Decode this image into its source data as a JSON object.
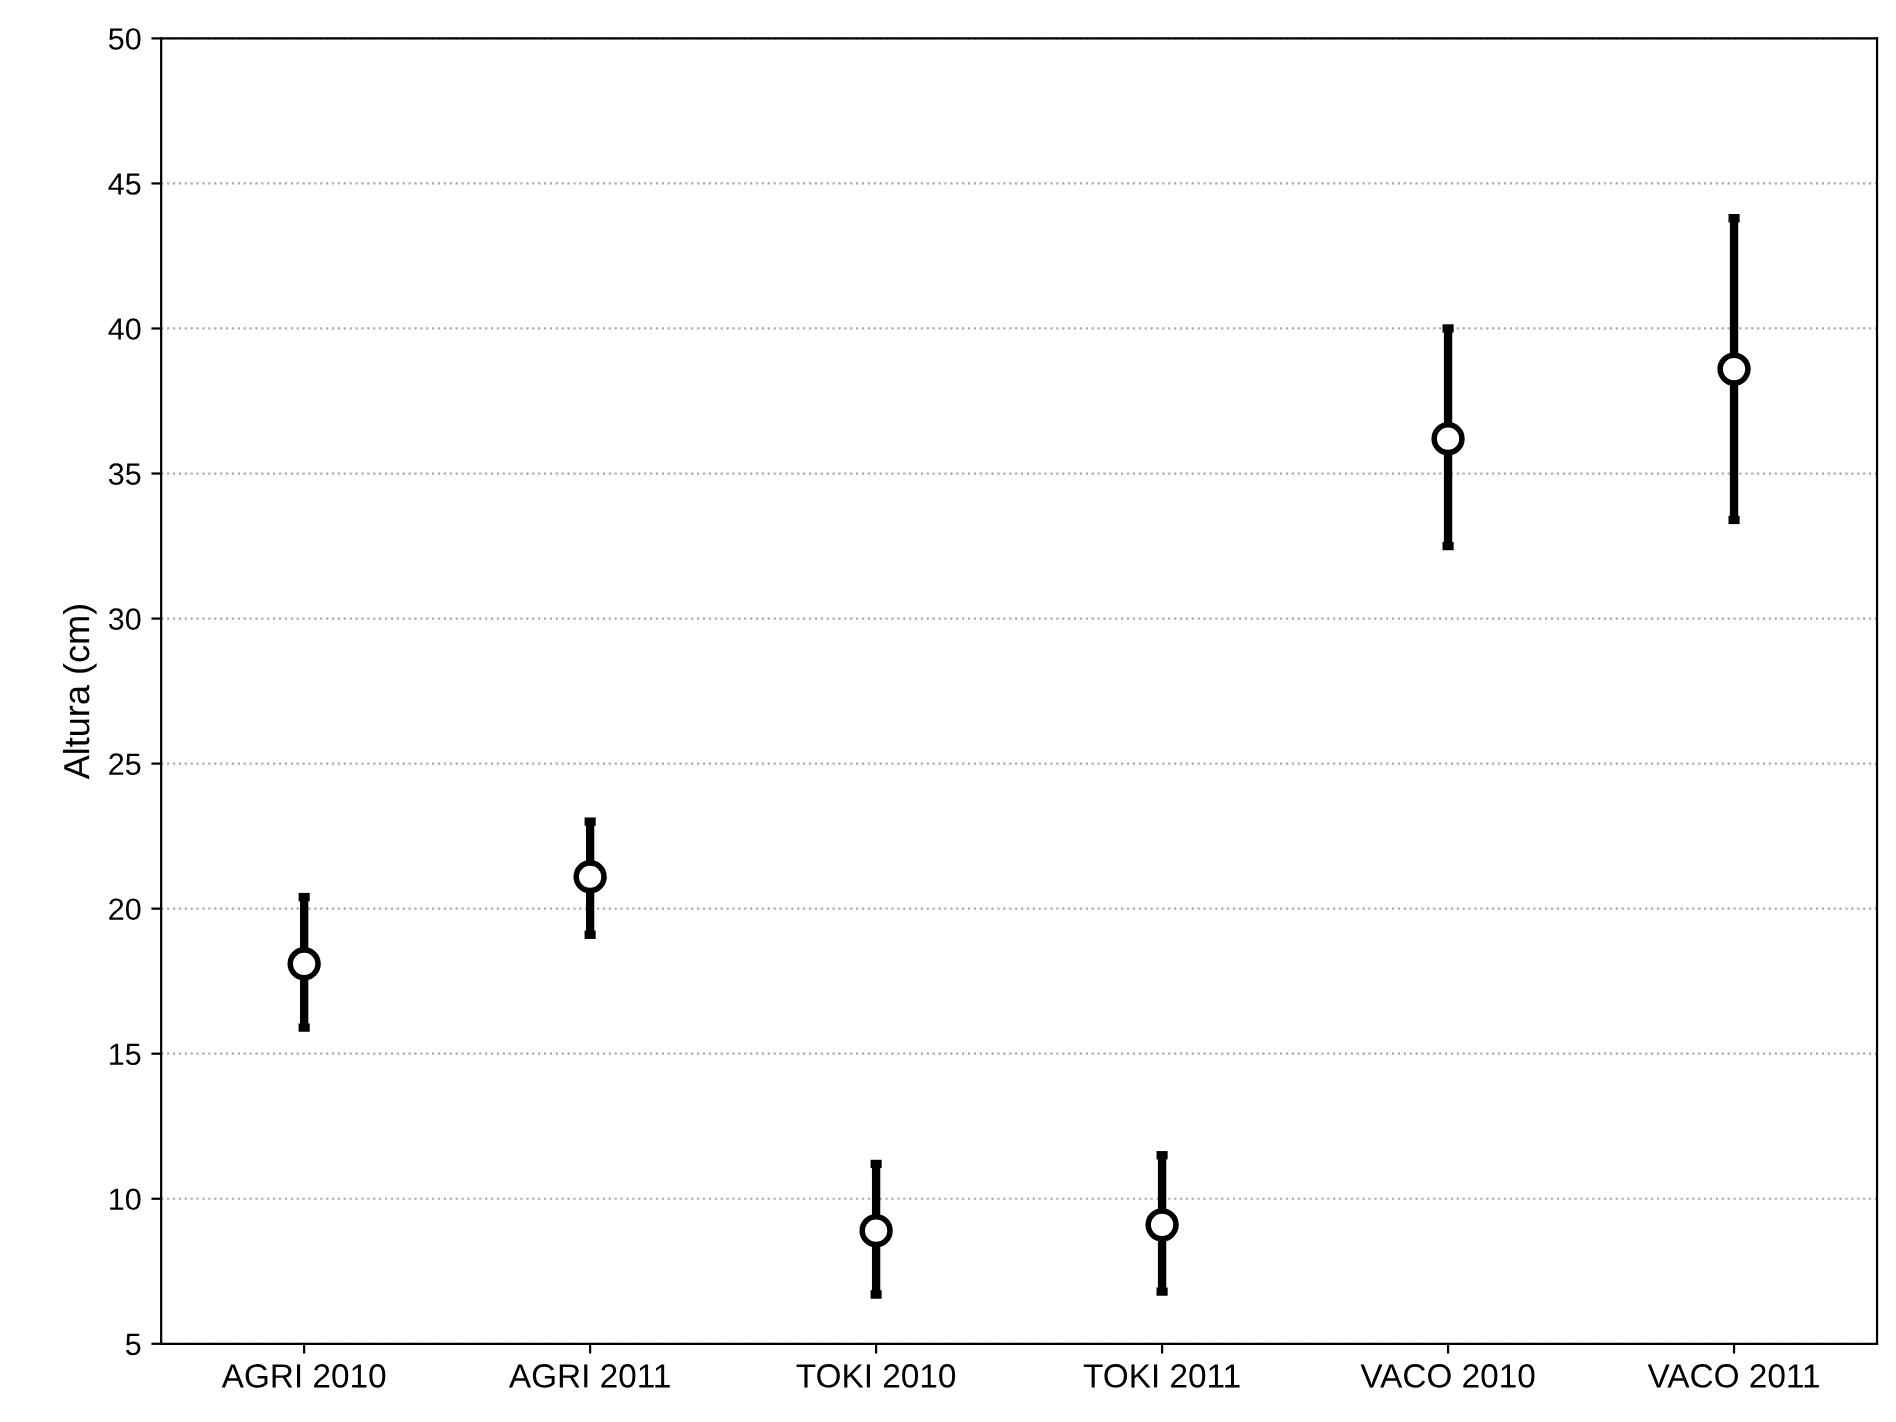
{
  "chart_data": {
    "type": "scatter",
    "ylabel": "Altura (cm)",
    "categories": [
      "AGRI 2010",
      "AGRI 2011",
      "TOKI 2010",
      "TOKI 2011",
      "VACO 2010",
      "VACO 2011"
    ],
    "values": [
      18.1,
      21.1,
      8.9,
      9.1,
      36.2,
      38.6
    ],
    "errors": [
      [
        15.9,
        20.4
      ],
      [
        19.1,
        23.0
      ],
      [
        6.7,
        11.2
      ],
      [
        6.8,
        11.5
      ],
      [
        32.5,
        40.0
      ],
      [
        33.4,
        43.8
      ]
    ],
    "color": "#000000",
    "marker": "circle",
    "ylim": [
      5,
      50
    ],
    "yticks": [
      5,
      10,
      15,
      20,
      25,
      30,
      35,
      40,
      45,
      50
    ],
    "grid": "y"
  }
}
